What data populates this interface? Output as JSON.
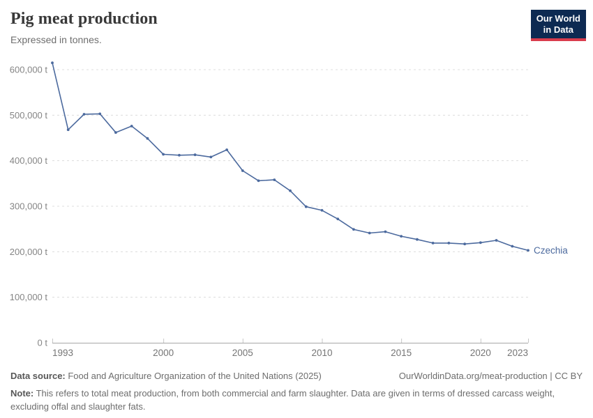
{
  "header": {
    "title": "Pig meat production",
    "subtitle": "Expressed in tonnes."
  },
  "logo": {
    "line1": "Our World",
    "line2": "in Data",
    "bg_color": "#0d2a52",
    "accent_color": "#d93c4c"
  },
  "chart_data": {
    "type": "line",
    "title": "Pig meat production",
    "ylabel": "",
    "xlabel": "",
    "unit": "t",
    "grid": true,
    "xlim": [
      1993,
      2023
    ],
    "ylim": [
      0,
      620000
    ],
    "xticks": [
      1993,
      2000,
      2005,
      2010,
      2015,
      2020,
      2023
    ],
    "xtick_labels": [
      "1993",
      "2000",
      "2005",
      "2010",
      "2015",
      "2020",
      "2023"
    ],
    "yticks": [
      0,
      100000,
      200000,
      300000,
      400000,
      500000,
      600000
    ],
    "ytick_labels": [
      "0 t",
      "100,000 t",
      "200,000 t",
      "300,000 t",
      "400,000 t",
      "500,000 t",
      "600,000 t"
    ],
    "years": [
      1993,
      1994,
      1995,
      1996,
      1997,
      1998,
      1999,
      2000,
      2001,
      2002,
      2003,
      2004,
      2005,
      2006,
      2007,
      2008,
      2009,
      2010,
      2011,
      2012,
      2013,
      2014,
      2015,
      2016,
      2017,
      2018,
      2019,
      2020,
      2021,
      2022,
      2023
    ],
    "series": [
      {
        "name": "Czechia",
        "color": "#4c6a9e",
        "values": [
          615000,
          468000,
          502000,
          503000,
          462000,
          476000,
          449000,
          414000,
          412000,
          413000,
          408000,
          424000,
          378000,
          356000,
          358000,
          334000,
          299000,
          291000,
          272000,
          249000,
          241000,
          244000,
          234000,
          227000,
          219000,
          219000,
          217000,
          220000,
          225000,
          212000,
          203000
        ]
      }
    ],
    "legend_position": "end-of-line",
    "end_label": "Czechia",
    "style": {
      "grid_color": "#dcdcdc",
      "axis_color": "#a6a6a6",
      "tick_color": "#c6c6c6",
      "ytick_label_color": "#858585",
      "xtick_label_color": "#757575"
    }
  },
  "footer": {
    "datasource_label": "Data source:",
    "datasource_text": " Food and Agriculture Organization of the United Nations (2025)",
    "link_text": "OurWorldinData.org/meat-production | CC BY",
    "note_label": "Note:",
    "note_text": " This refers to total meat production, from both commercial and farm slaughter. Data are given in terms of dressed carcass weight, excluding offal and slaughter fats."
  }
}
